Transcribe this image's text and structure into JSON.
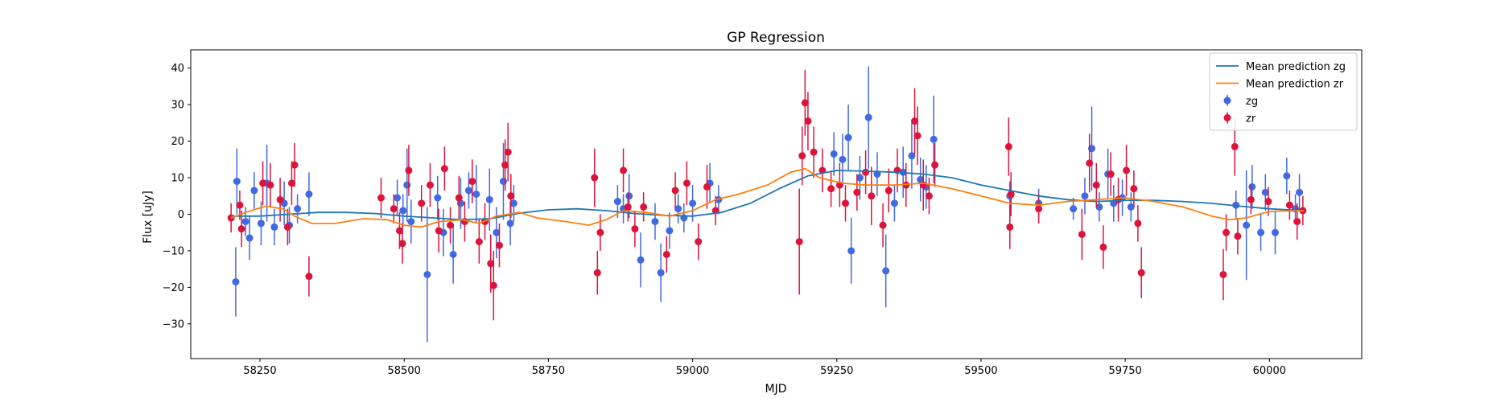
{
  "chart_data": {
    "type": "scatter",
    "title": "GP Regression",
    "xlabel": "MJD",
    "ylabel": "Flux [uJy]",
    "xlim": [
      58130,
      60160
    ],
    "ylim": [
      -39.5,
      45
    ],
    "xticks": [
      58250,
      58500,
      58750,
      59000,
      59250,
      59500,
      59750,
      60000
    ],
    "yticks": [
      -30,
      -20,
      -10,
      0,
      10,
      20,
      30,
      40
    ],
    "grid": false,
    "legend_position": "top-right",
    "series": [
      {
        "name": "Mean prediction zg",
        "kind": "line",
        "color": "#1f77b4",
        "x": [
          58200,
          58250,
          58300,
          58350,
          58400,
          58450,
          58500,
          58550,
          58600,
          58650,
          58700,
          58750,
          58800,
          58850,
          58900,
          58950,
          59000,
          59050,
          59100,
          59150,
          59200,
          59250,
          59300,
          59350,
          59400,
          59450,
          59500,
          59550,
          59600,
          59650,
          59700,
          59750,
          59800,
          59850,
          59900,
          59950,
          60000,
          60060
        ],
        "y": [
          -0.5,
          -0.5,
          0.0,
          0.5,
          0.5,
          0.2,
          -0.5,
          -1.0,
          -1.5,
          -1.2,
          0.3,
          1.2,
          1.5,
          1.0,
          0.2,
          -0.3,
          -0.5,
          0.5,
          3.0,
          7.0,
          10.5,
          12.0,
          11.8,
          11.5,
          11.0,
          10.0,
          8.0,
          6.5,
          5.0,
          4.0,
          3.5,
          3.8,
          3.8,
          3.5,
          3.0,
          2.2,
          1.5,
          1.0
        ]
      },
      {
        "name": "Mean prediction zr",
        "kind": "line",
        "color": "#ff7f0e",
        "x": [
          58200,
          58230,
          58260,
          58290,
          58310,
          58340,
          58380,
          58430,
          58470,
          58500,
          58530,
          58560,
          58600,
          58630,
          58660,
          58700,
          58730,
          58780,
          58820,
          58850,
          58880,
          58920,
          58960,
          59000,
          59040,
          59080,
          59130,
          59170,
          59195,
          59220,
          59260,
          59300,
          59350,
          59400,
          59450,
          59500,
          59550,
          59600,
          59650,
          59700,
          59750,
          59800,
          59850,
          59900,
          59930,
          59960,
          60000,
          60060
        ],
        "y": [
          -1.0,
          0.8,
          2.2,
          1.5,
          -0.5,
          -2.5,
          -2.5,
          -1.2,
          -1.5,
          -3.0,
          -3.5,
          -2.0,
          -1.5,
          -2.5,
          -0.5,
          0.5,
          -1.0,
          -2.0,
          -3.0,
          -1.5,
          1.0,
          0.5,
          -0.5,
          1.0,
          4.0,
          5.5,
          8.0,
          11.5,
          12.5,
          10.0,
          8.5,
          8.0,
          8.0,
          8.5,
          7.0,
          5.0,
          3.0,
          2.5,
          3.5,
          4.0,
          4.5,
          3.5,
          2.0,
          -0.5,
          -1.5,
          -1.0,
          0.8,
          1.0
        ]
      },
      {
        "name": "zg",
        "kind": "errorbar",
        "color": "#4169e1",
        "points": [
          [
            58208,
            -18.5,
            9.5
          ],
          [
            58210,
            9.0,
            9.0
          ],
          [
            58225,
            -2.0,
            4.0
          ],
          [
            58232,
            -6.5,
            6.0
          ],
          [
            58240,
            6.5,
            5.0
          ],
          [
            58252,
            -2.5,
            6.0
          ],
          [
            58262,
            8.5,
            10.5
          ],
          [
            58275,
            -3.5,
            5.0
          ],
          [
            58292,
            3.0,
            6.0
          ],
          [
            58301,
            -3.0,
            5.0
          ],
          [
            58315,
            1.5,
            4.0
          ],
          [
            58335,
            5.5,
            6.0
          ],
          [
            58488,
            4.5,
            5.0
          ],
          [
            58498,
            1.0,
            4.5
          ],
          [
            58505,
            8.0,
            10.0
          ],
          [
            58512,
            -2.0,
            6.0
          ],
          [
            58540,
            -16.5,
            18.5
          ],
          [
            58558,
            4.5,
            6.0
          ],
          [
            58568,
            -5.0,
            6.5
          ],
          [
            58585,
            -11.0,
            8.0
          ],
          [
            58598,
            3.0,
            7.0
          ],
          [
            58612,
            6.5,
            5.0
          ],
          [
            58625,
            5.5,
            8.0
          ],
          [
            58648,
            4.0,
            8.5
          ],
          [
            58660,
            -5.0,
            7.0
          ],
          [
            58672,
            9.0,
            10.5
          ],
          [
            58684,
            -2.5,
            6.0
          ],
          [
            58690,
            3.0,
            5.0
          ],
          [
            58870,
            3.5,
            4.5
          ],
          [
            58880,
            1.5,
            4.0
          ],
          [
            58890,
            5.0,
            6.0
          ],
          [
            58910,
            -12.5,
            7.5
          ],
          [
            58935,
            -2.0,
            5.0
          ],
          [
            58945,
            -16.0,
            8.0
          ],
          [
            58960,
            -4.5,
            5.0
          ],
          [
            58975,
            1.5,
            4.0
          ],
          [
            58985,
            -1.0,
            4.0
          ],
          [
            59000,
            3.0,
            5.0
          ],
          [
            59030,
            8.5,
            5.5
          ],
          [
            59045,
            4.0,
            4.0
          ],
          [
            59245,
            16.5,
            6.0
          ],
          [
            59260,
            15.0,
            7.0
          ],
          [
            59270,
            21.0,
            9.0
          ],
          [
            59275,
            -10.0,
            9.0
          ],
          [
            59290,
            10.0,
            6.0
          ],
          [
            59305,
            26.5,
            14.0
          ],
          [
            59320,
            11.0,
            6.0
          ],
          [
            59335,
            -15.5,
            10.0
          ],
          [
            59350,
            3.0,
            5.0
          ],
          [
            59365,
            11.5,
            7.0
          ],
          [
            59380,
            16.0,
            9.0
          ],
          [
            59395,
            9.5,
            6.0
          ],
          [
            59405,
            7.5,
            6.0
          ],
          [
            59418,
            20.5,
            12.0
          ],
          [
            59550,
            5.0,
            4.0
          ],
          [
            59600,
            3.0,
            4.0
          ],
          [
            59660,
            1.5,
            3.0
          ],
          [
            59680,
            5.0,
            5.0
          ],
          [
            59692,
            18.0,
            11.5
          ],
          [
            59705,
            2.0,
            4.0
          ],
          [
            59720,
            11.0,
            7.0
          ],
          [
            59730,
            3.0,
            5.0
          ],
          [
            59745,
            4.5,
            5.0
          ],
          [
            59760,
            2.0,
            4.0
          ],
          [
            59942,
            2.5,
            4.0
          ],
          [
            59960,
            -3.0,
            15.0
          ],
          [
            59970,
            7.5,
            6.0
          ],
          [
            59985,
            -5.0,
            5.0
          ],
          [
            59993,
            6.0,
            5.0
          ],
          [
            60010,
            -5.0,
            6.0
          ],
          [
            60030,
            10.5,
            5.0
          ],
          [
            60045,
            1.5,
            4.0
          ],
          [
            60052,
            6.0,
            5.0
          ]
        ]
      },
      {
        "name": "zr",
        "kind": "errorbar",
        "color": "#dc143c",
        "points": [
          [
            58200,
            -1.0,
            4.0
          ],
          [
            58215,
            2.5,
            4.0
          ],
          [
            58218,
            -4.0,
            5.0
          ],
          [
            58255,
            8.5,
            6.0
          ],
          [
            58268,
            8.0,
            6.0
          ],
          [
            58285,
            4.0,
            6.0
          ],
          [
            58298,
            -3.5,
            5.0
          ],
          [
            58305,
            8.5,
            6.0
          ],
          [
            58310,
            13.5,
            6.0
          ],
          [
            58335,
            -17.0,
            5.5
          ],
          [
            58460,
            4.5,
            5.5
          ],
          [
            58482,
            1.5,
            4.0
          ],
          [
            58492,
            -4.5,
            5.0
          ],
          [
            58497,
            -8.0,
            5.5
          ],
          [
            58508,
            12.0,
            7.0
          ],
          [
            58530,
            3.0,
            5.0
          ],
          [
            58545,
            8.0,
            6.0
          ],
          [
            58560,
            -4.5,
            6.0
          ],
          [
            58570,
            12.5,
            6.0
          ],
          [
            58580,
            -3.0,
            5.0
          ],
          [
            58595,
            4.5,
            6.0
          ],
          [
            58605,
            -2.0,
            5.5
          ],
          [
            58618,
            9.0,
            6.0
          ],
          [
            58630,
            -7.5,
            6.0
          ],
          [
            58640,
            -2.0,
            5.0
          ],
          [
            58650,
            -13.5,
            8.0
          ],
          [
            58655,
            -19.5,
            9.5
          ],
          [
            58665,
            -8.5,
            6.0
          ],
          [
            58675,
            13.5,
            7.0
          ],
          [
            58680,
            17.0,
            8.0
          ],
          [
            58685,
            5.0,
            6.0
          ],
          [
            58830,
            10.0,
            8.0
          ],
          [
            58835,
            -16.0,
            6.0
          ],
          [
            58840,
            -5.0,
            5.0
          ],
          [
            58880,
            12.0,
            6.0
          ],
          [
            58888,
            2.0,
            4.0
          ],
          [
            58900,
            -4.0,
            5.0
          ],
          [
            58915,
            2.0,
            4.0
          ],
          [
            58955,
            -11.0,
            5.0
          ],
          [
            58970,
            6.5,
            5.0
          ],
          [
            58990,
            8.5,
            6.0
          ],
          [
            59010,
            -7.5,
            5.0
          ],
          [
            59025,
            7.5,
            6.0
          ],
          [
            59040,
            1.0,
            4.0
          ],
          [
            59185,
            -7.5,
            14.5
          ],
          [
            59190,
            16.0,
            8.0
          ],
          [
            59195,
            30.5,
            9.0
          ],
          [
            59200,
            25.5,
            8.0
          ],
          [
            59210,
            17.0,
            7.0
          ],
          [
            59225,
            12.0,
            6.0
          ],
          [
            59240,
            7.0,
            5.0
          ],
          [
            59255,
            8.0,
            6.0
          ],
          [
            59265,
            3.0,
            5.0
          ],
          [
            59285,
            6.0,
            5.0
          ],
          [
            59300,
            11.5,
            6.0
          ],
          [
            59310,
            5.0,
            8.0
          ],
          [
            59330,
            -3.0,
            6.0
          ],
          [
            59340,
            6.5,
            6.0
          ],
          [
            59355,
            12.0,
            6.0
          ],
          [
            59370,
            8.0,
            6.0
          ],
          [
            59385,
            25.5,
            9.0
          ],
          [
            59390,
            21.5,
            8.0
          ],
          [
            59400,
            8.0,
            7.0
          ],
          [
            59410,
            5.0,
            5.0
          ],
          [
            59420,
            13.5,
            6.0
          ],
          [
            59548,
            18.5,
            8.0
          ],
          [
            59550,
            -3.5,
            6.0
          ],
          [
            59552,
            5.5,
            6.0
          ],
          [
            59600,
            1.5,
            4.0
          ],
          [
            59675,
            -5.5,
            7.0
          ],
          [
            59688,
            14.0,
            8.0
          ],
          [
            59700,
            8.0,
            6.0
          ],
          [
            59712,
            -9.0,
            6.0
          ],
          [
            59725,
            11.0,
            6.0
          ],
          [
            59738,
            4.0,
            6.0
          ],
          [
            59752,
            12.0,
            7.0
          ],
          [
            59765,
            7.0,
            5.0
          ],
          [
            59772,
            -2.5,
            5.0
          ],
          [
            59778,
            -16.0,
            7.0
          ],
          [
            59920,
            -16.5,
            7.0
          ],
          [
            59925,
            -5.0,
            5.0
          ],
          [
            59940,
            18.5,
            8.0
          ],
          [
            59945,
            -6.0,
            5.0
          ],
          [
            59968,
            4.0,
            4.0
          ],
          [
            59998,
            3.5,
            4.0
          ],
          [
            60035,
            2.5,
            4.0
          ],
          [
            60048,
            -2.0,
            5.0
          ],
          [
            60058,
            1.0,
            4.0
          ]
        ]
      }
    ]
  }
}
